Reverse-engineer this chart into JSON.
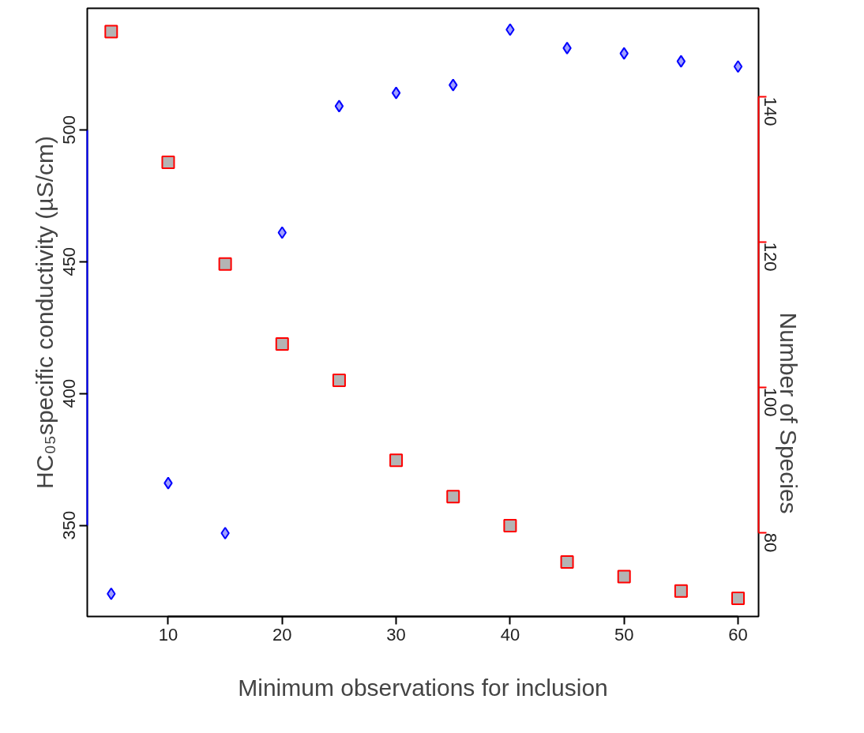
{
  "chart_data": {
    "type": "scatter",
    "xlabel": "Minimum observations for inclusion",
    "ylabel": "HC₀₅specific conductivity (µS/cm)",
    "y2label": "Number of Species",
    "x": [
      5,
      10,
      15,
      20,
      25,
      30,
      35,
      40,
      45,
      50,
      55,
      60
    ],
    "series": [
      {
        "color": "#0000ff",
        "marker": "diamond",
        "values": [
          324,
          366,
          347,
          461,
          509,
          514,
          517,
          538,
          531,
          529,
          526,
          524
        ]
      },
      {
        "color": "#ff0000",
        "marker": "square",
        "axis": "y2",
        "values": [
          149,
          131,
          117,
          106,
          101,
          90,
          85,
          81,
          76,
          74,
          72,
          71
        ]
      }
    ],
    "xlim": [
      2.9,
      61.8
    ],
    "xticks": [
      10,
      20,
      30,
      40,
      50,
      60
    ],
    "ylim": [
      315.4,
      546.1
    ],
    "yticks": [
      350,
      400,
      450,
      500
    ],
    "y2lim": [
      68.5,
      152.2
    ],
    "y2ticks": [
      80,
      100,
      120,
      140
    ],
    "grid": false
  }
}
